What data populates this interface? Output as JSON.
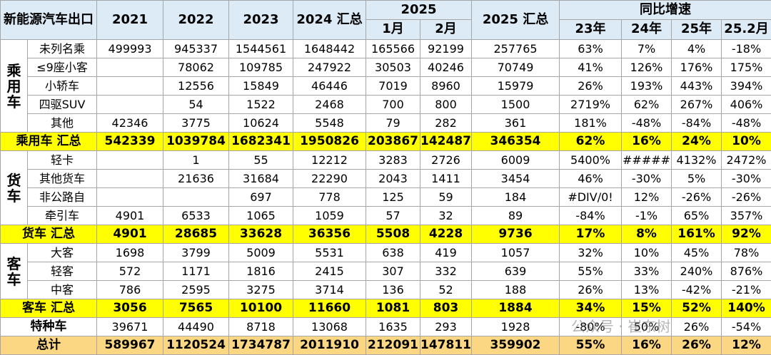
{
  "header": {
    "title": "新能源汽车出口",
    "columns": [
      "2021",
      "2022",
      "2023",
      "2024 汇总"
    ],
    "group_2025": "2025",
    "months": [
      "1月",
      "2月"
    ],
    "total_2025": "2025 汇总",
    "growth": "同比增速",
    "growth_columns": [
      "23年",
      "24年",
      "25年",
      "25.2月"
    ]
  },
  "sections": [
    {
      "group": "乘用车",
      "rows": [
        {
          "label": "未列名乘",
          "cells": [
            499993,
            945337,
            1544561,
            1648442,
            165566,
            92199,
            257765,
            "63%",
            "7%",
            "4%",
            "-18%"
          ]
        },
        {
          "label": "≤9座小客",
          "cells": [
            null,
            78062,
            109785,
            247922,
            30503,
            40246,
            70749,
            "41%",
            "126%",
            "176%",
            "175%"
          ]
        },
        {
          "label": "小轿车",
          "cells": [
            null,
            12556,
            15849,
            46446,
            7019,
            8960,
            15979,
            "26%",
            "193%",
            "443%",
            "394%"
          ]
        },
        {
          "label": "四驱SUV",
          "cells": [
            null,
            54,
            1522,
            2468,
            700,
            800,
            1500,
            "2719%",
            "62%",
            "267%",
            "406%"
          ]
        },
        {
          "label": "其他",
          "cells": [
            42346,
            3775,
            10624,
            5548,
            79,
            282,
            361,
            "181%",
            "-48%",
            "-84%",
            "-48%"
          ]
        }
      ],
      "summary": {
        "label": "乘用车 汇总",
        "cells": [
          542339,
          1039784,
          1682341,
          1950826,
          203867,
          142487,
          346354,
          "62%",
          "16%",
          "24%",
          "10%"
        ]
      }
    },
    {
      "group": "货车",
      "rows": [
        {
          "label": "轻卡",
          "cells": [
            null,
            1,
            55,
            12212,
            3283,
            2726,
            6009,
            "5400%",
            "#####",
            "4132%",
            "2472%"
          ]
        },
        {
          "label": "其他货车",
          "cells": [
            null,
            21636,
            31684,
            22290,
            2043,
            1411,
            3454,
            "46%",
            "-30%",
            "5%",
            "-30%"
          ]
        },
        {
          "label": "非公路自",
          "cells": [
            null,
            null,
            697,
            778,
            125,
            59,
            184,
            "#DIV/0!",
            "12%",
            "-26%",
            "-26%"
          ]
        },
        {
          "label": "牵引车",
          "cells": [
            4901,
            6533,
            1065,
            1059,
            57,
            32,
            89,
            "-84%",
            "-1%",
            "65%",
            "357%"
          ]
        }
      ],
      "summary": {
        "label": "货车 汇总",
        "cells": [
          4901,
          28685,
          33628,
          36356,
          5508,
          4228,
          9736,
          "17%",
          "8%",
          "161%",
          "92%"
        ]
      }
    },
    {
      "group": "客车",
      "rows": [
        {
          "label": "大客",
          "cells": [
            1698,
            3799,
            5009,
            5531,
            638,
            419,
            1057,
            "32%",
            "10%",
            "45%",
            "78%"
          ]
        },
        {
          "label": "轻客",
          "cells": [
            572,
            1171,
            1816,
            2415,
            307,
            332,
            639,
            "55%",
            "33%",
            "240%",
            "876%"
          ]
        },
        {
          "label": "中客",
          "cells": [
            786,
            2595,
            3275,
            3714,
            136,
            52,
            188,
            "26%",
            "13%",
            "-42%",
            "-21%"
          ]
        }
      ],
      "summary": {
        "label": "客车 汇总",
        "cells": [
          3056,
          7565,
          10100,
          11660,
          1081,
          803,
          1884,
          "34%",
          "15%",
          "52%",
          "140%"
        ]
      }
    }
  ],
  "special": {
    "label": "特种车",
    "cells": [
      39671,
      44490,
      8718,
      13068,
      1635,
      293,
      1928,
      "-80%",
      "50%",
      "26%",
      "-54%"
    ]
  },
  "total": {
    "label": "总计",
    "cells": [
      589967,
      1120524,
      1734787,
      2011910,
      212091,
      147811,
      359902,
      "55%",
      "16%",
      "26%",
      "12%"
    ]
  },
  "watermark": "公众号 · 崔东树"
}
